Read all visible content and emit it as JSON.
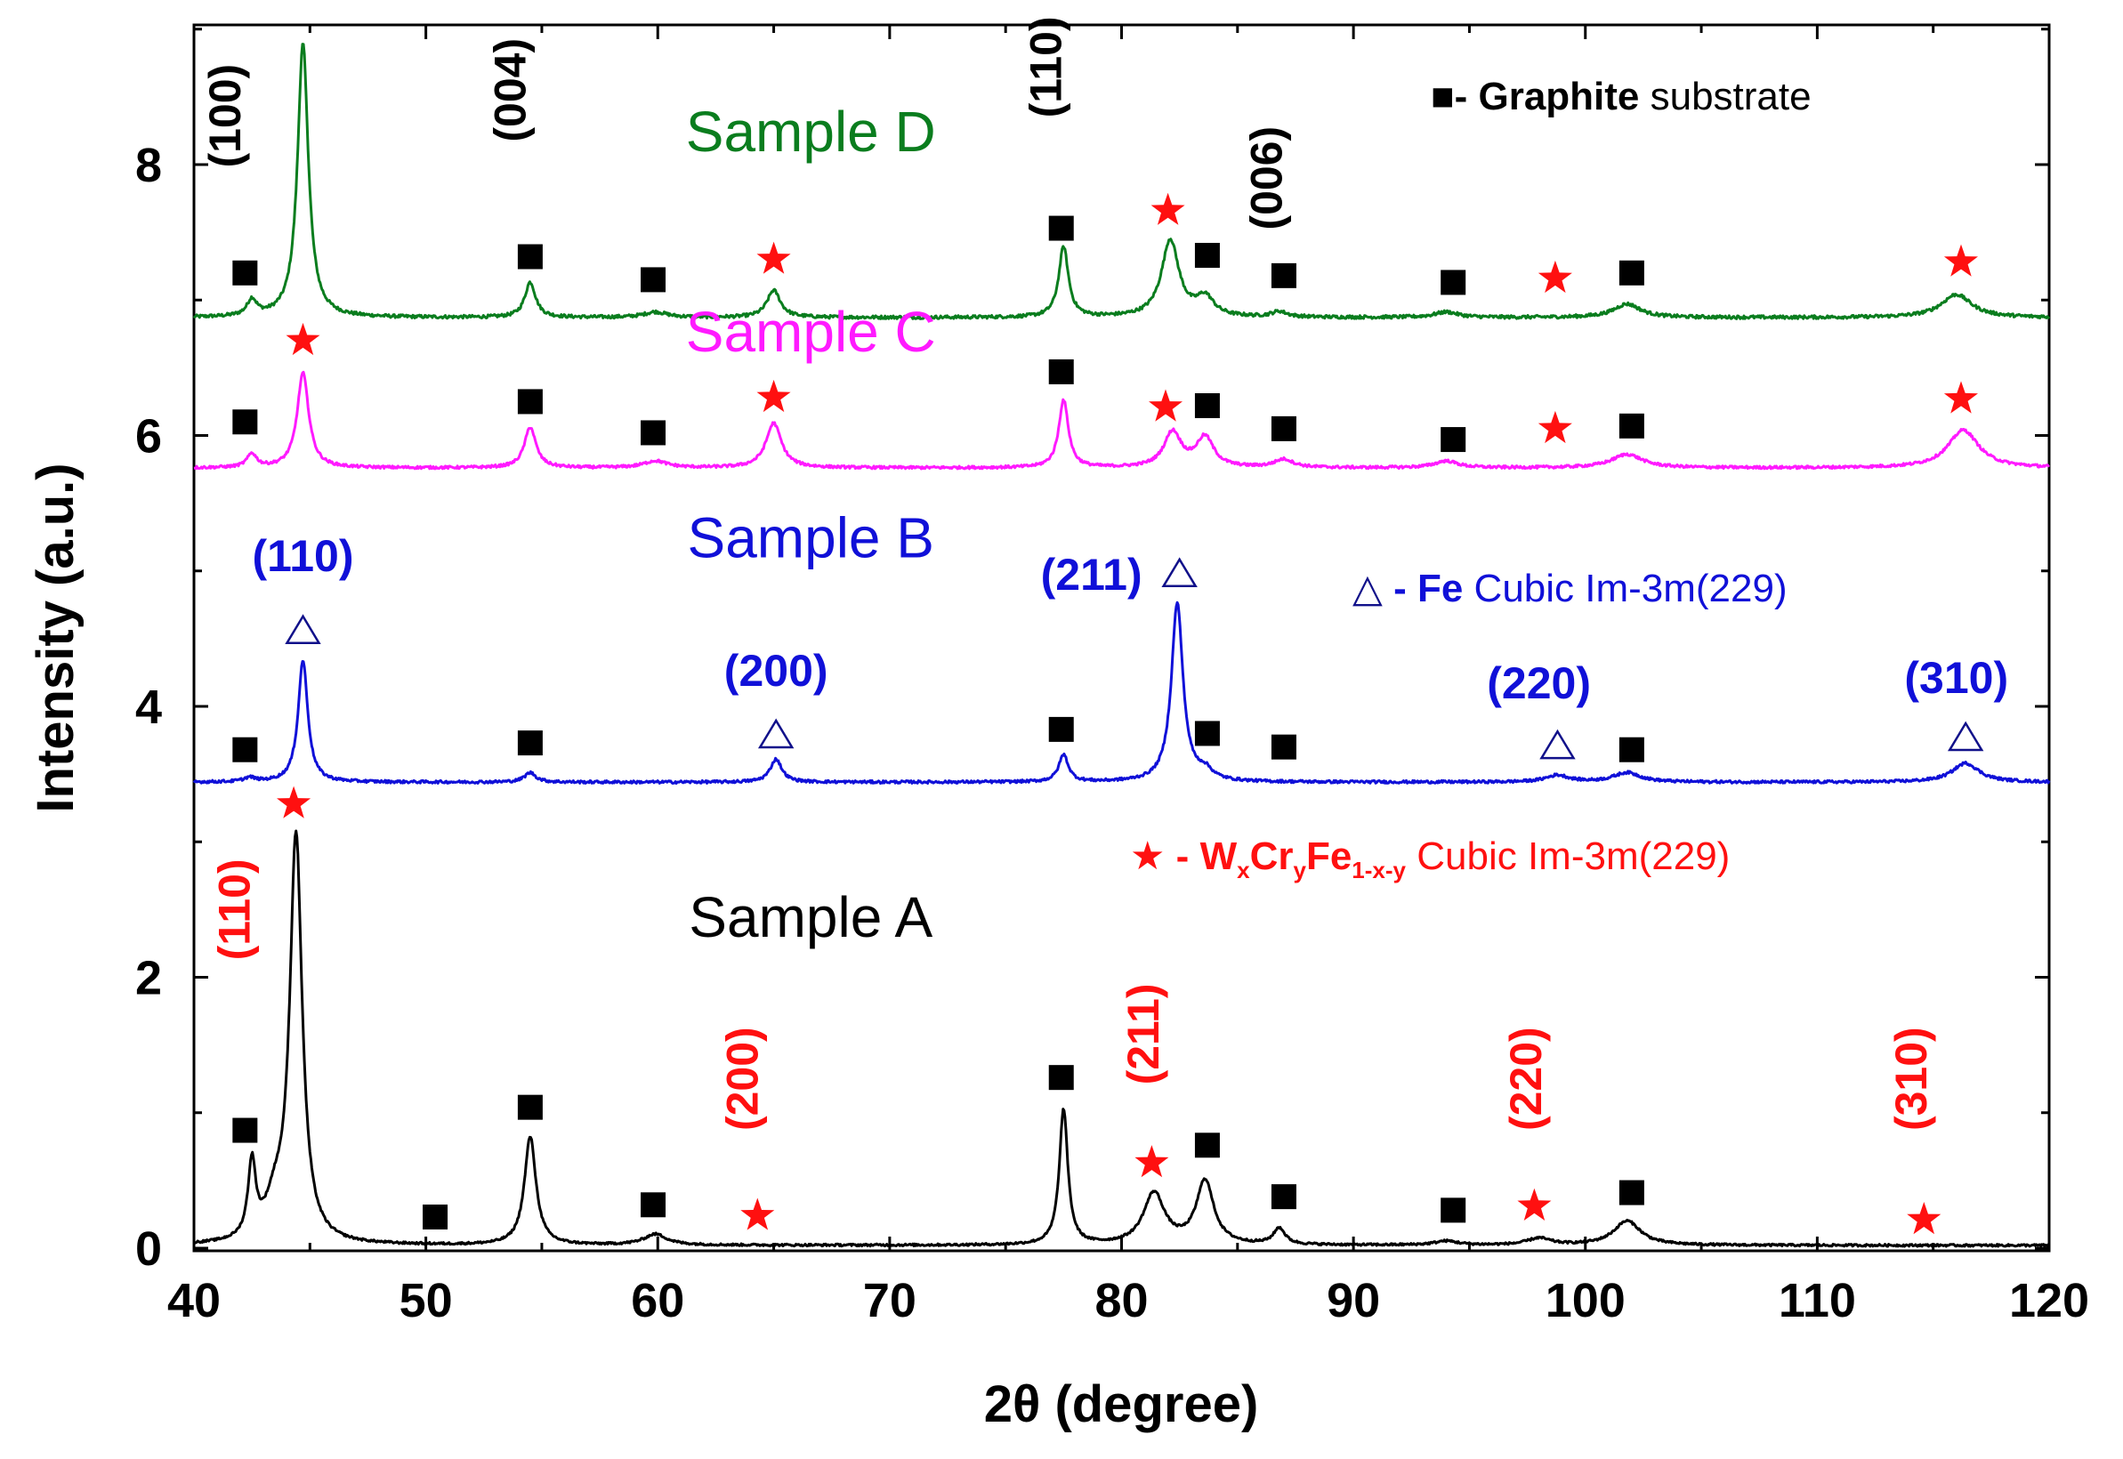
{
  "chart_data": {
    "type": "line",
    "xlabel": "2θ (degree)",
    "ylabel": "Intensity (a.u.)",
    "xlim": [
      40,
      120
    ],
    "ylim": [
      0,
      9
    ],
    "x_ticks": [
      40,
      50,
      60,
      70,
      80,
      90,
      100,
      110,
      120
    ],
    "y_ticks": [
      0,
      2,
      4,
      6,
      8
    ],
    "series": [
      {
        "name": "Sample D",
        "color": "#0a7d1e",
        "baseline": 6.87,
        "noise": 0.012,
        "peaks": [
          [
            42.5,
            0.12,
            0.25
          ],
          [
            44.7,
            2.02,
            0.28
          ],
          [
            54.5,
            0.26,
            0.28
          ],
          [
            59.9,
            0.04,
            0.6
          ],
          [
            65.0,
            0.2,
            0.35
          ],
          [
            77.5,
            0.52,
            0.25
          ],
          [
            82.1,
            0.57,
            0.45
          ],
          [
            83.6,
            0.14,
            0.45
          ],
          [
            86.8,
            0.04,
            0.4
          ],
          [
            94.0,
            0.04,
            0.6
          ],
          [
            101.8,
            0.1,
            0.7
          ],
          [
            116.0,
            0.17,
            0.8
          ]
        ]
      },
      {
        "name": "Sample C",
        "color": "#ff1aff",
        "baseline": 5.76,
        "noise": 0.01,
        "peaks": [
          [
            42.5,
            0.1,
            0.25
          ],
          [
            44.7,
            0.7,
            0.3
          ],
          [
            54.5,
            0.3,
            0.3
          ],
          [
            59.9,
            0.05,
            0.6
          ],
          [
            65.0,
            0.33,
            0.4
          ],
          [
            77.5,
            0.5,
            0.25
          ],
          [
            82.2,
            0.26,
            0.45
          ],
          [
            83.6,
            0.22,
            0.45
          ],
          [
            87.0,
            0.06,
            0.5
          ],
          [
            94.0,
            0.05,
            0.6
          ],
          [
            101.8,
            0.1,
            0.8
          ],
          [
            116.3,
            0.28,
            0.8
          ]
        ]
      },
      {
        "name": "Sample B",
        "color": "#1010d8",
        "baseline": 3.44,
        "noise": 0.01,
        "peaks": [
          [
            42.4,
            0.03,
            0.3
          ],
          [
            44.7,
            0.9,
            0.25
          ],
          [
            54.5,
            0.07,
            0.3
          ],
          [
            65.1,
            0.17,
            0.3
          ],
          [
            77.5,
            0.2,
            0.25
          ],
          [
            82.4,
            1.32,
            0.3
          ],
          [
            83.6,
            0.07,
            0.4
          ],
          [
            98.8,
            0.05,
            0.6
          ],
          [
            101.8,
            0.07,
            0.7
          ],
          [
            116.4,
            0.14,
            0.7
          ]
        ]
      },
      {
        "name": "Sample A",
        "color": "#000000",
        "baseline": 0.02,
        "noise": 0.008,
        "peaks": [
          [
            42.5,
            0.55,
            0.2
          ],
          [
            43.5,
            0.25,
            0.5
          ],
          [
            44.4,
            3.0,
            0.32
          ],
          [
            54.5,
            0.8,
            0.3
          ],
          [
            59.9,
            0.08,
            0.6
          ],
          [
            77.5,
            1.0,
            0.22
          ],
          [
            81.4,
            0.38,
            0.55
          ],
          [
            83.6,
            0.47,
            0.45
          ],
          [
            86.8,
            0.12,
            0.3
          ],
          [
            94.0,
            0.03,
            0.6
          ],
          [
            98.0,
            0.05,
            0.6
          ],
          [
            101.8,
            0.18,
            0.7
          ]
        ]
      }
    ],
    "sample_labels": [
      {
        "text": "Sample D",
        "x": 66.6,
        "y": 8.1,
        "color": "#0a7d1e"
      },
      {
        "text": "Sample C",
        "x": 66.6,
        "y": 6.62,
        "color": "#ff1aff"
      },
      {
        "text": "Sample B",
        "x": 66.6,
        "y": 5.1,
        "color": "#1010d8"
      },
      {
        "text": "Sample A",
        "x": 66.6,
        "y": 2.3,
        "color": "#000000"
      }
    ],
    "squares": [
      [
        42.2,
        7.2
      ],
      [
        54.5,
        7.32
      ],
      [
        59.8,
        7.15
      ],
      [
        77.4,
        7.53
      ],
      [
        83.7,
        7.33
      ],
      [
        87.0,
        7.18
      ],
      [
        94.3,
        7.13
      ],
      [
        102.0,
        7.2
      ],
      [
        42.2,
        6.1
      ],
      [
        54.5,
        6.25
      ],
      [
        59.8,
        6.02
      ],
      [
        77.4,
        6.47
      ],
      [
        83.7,
        6.22
      ],
      [
        87.0,
        6.05
      ],
      [
        94.3,
        5.97
      ],
      [
        102.0,
        6.07
      ],
      [
        42.2,
        3.68
      ],
      [
        54.5,
        3.73
      ],
      [
        77.4,
        3.83
      ],
      [
        83.7,
        3.8
      ],
      [
        87.0,
        3.7
      ],
      [
        102.0,
        3.68
      ],
      [
        42.2,
        0.87
      ],
      [
        50.4,
        0.23
      ],
      [
        54.5,
        1.04
      ],
      [
        59.8,
        0.32
      ],
      [
        77.4,
        1.26
      ],
      [
        83.7,
        0.76
      ],
      [
        87.0,
        0.38
      ],
      [
        94.3,
        0.28
      ],
      [
        102.0,
        0.41
      ]
    ],
    "stars": [
      [
        65.0,
        7.3
      ],
      [
        82.0,
        7.66
      ],
      [
        98.7,
        7.16
      ],
      [
        116.2,
        7.28
      ],
      [
        44.7,
        6.7
      ],
      [
        65.0,
        6.28
      ],
      [
        81.9,
        6.21
      ],
      [
        98.7,
        6.05
      ],
      [
        116.2,
        6.27
      ],
      [
        44.3,
        3.28
      ],
      [
        64.3,
        0.24
      ],
      [
        81.3,
        0.63
      ],
      [
        97.8,
        0.31
      ],
      [
        114.6,
        0.21
      ]
    ],
    "triangles": [
      [
        44.7,
        4.56
      ],
      [
        65.1,
        3.79
      ],
      [
        82.5,
        4.98
      ],
      [
        98.8,
        3.71
      ],
      [
        116.4,
        3.77
      ]
    ],
    "miller_black": [
      {
        "text": "(100)",
        "x": 42.0,
        "y": 8.36
      },
      {
        "text": "(004)",
        "x": 54.3,
        "y": 8.55
      },
      {
        "text": "(110)",
        "x": 77.4,
        "y": 8.72
      },
      {
        "text": "(006)",
        "x": 86.9,
        "y": 7.9
      }
    ],
    "miller_blue": [
      {
        "text": "(110)",
        "x": 44.7,
        "y": 5.0
      },
      {
        "text": "(211)",
        "x": 78.7,
        "y": 4.86
      },
      {
        "text": "(200)",
        "x": 65.1,
        "y": 4.15
      },
      {
        "text": "(220)",
        "x": 98.0,
        "y": 4.06
      },
      {
        "text": "(310)",
        "x": 116.0,
        "y": 4.1
      }
    ],
    "miller_red": [
      {
        "text": "(110)",
        "x": 42.4,
        "y": 2.5
      },
      {
        "text": "(200)",
        "x": 64.3,
        "y": 1.25
      },
      {
        "text": "(211)",
        "x": 81.6,
        "y": 1.58
      },
      {
        "text": "(220)",
        "x": 98.1,
        "y": 1.25
      },
      {
        "text": "(310)",
        "x": 114.7,
        "y": 1.25
      }
    ],
    "legend_graphite": {
      "symbol": "■",
      "dash": "- ",
      "bold": "Graphite",
      "rest": " substrate"
    },
    "legend_fe": {
      "symbol": "△",
      "dash": " - ",
      "bold": "Fe",
      "rest": "  Cubic Im-3m(229)"
    },
    "legend_wcrfe": {
      "symbol": "★",
      "prefix": " - ",
      "w": "W",
      "x_sub": "x",
      "cr": "Cr",
      "y_sub": "y",
      "fe": "Fe",
      "sub3": "1-x-y",
      "rest": " Cubic  Im-3m(229)"
    }
  }
}
